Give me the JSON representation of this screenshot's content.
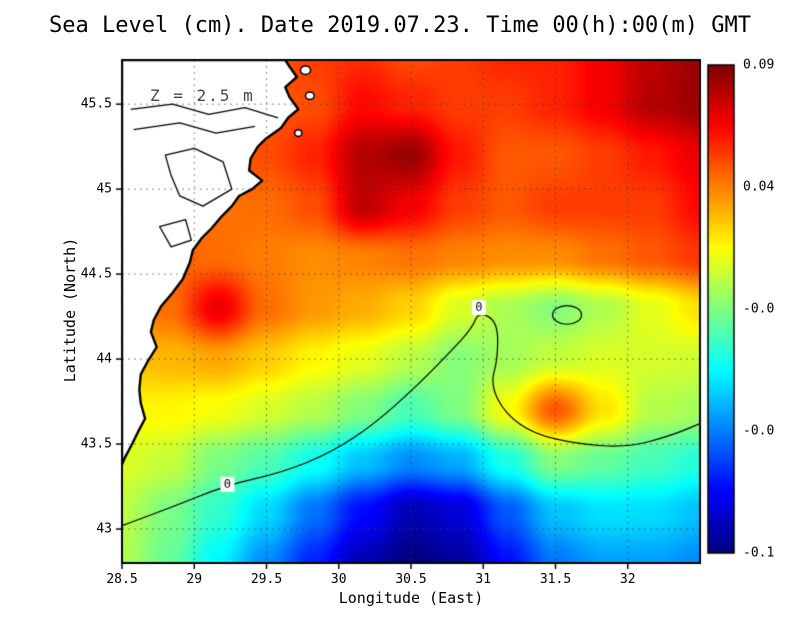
{
  "chart_data": {
    "type": "heatmap",
    "title": "Sea Level (cm). Date 2019.07.23. Time 00(h):00(m) GMT",
    "xlabel": "Longitude (East)",
    "ylabel": "Latitude (North)",
    "units": "cm",
    "annotations": [
      {
        "text": "Z = 2.5 m",
        "lon": 28.7,
        "lat": 45.55
      }
    ],
    "x_range": [
      28.5,
      32.5
    ],
    "y_range": [
      42.8,
      45.76
    ],
    "value_range": [
      -0.1,
      0.09
    ],
    "colormap": "jet",
    "grid": "dotted",
    "x_ticks": {
      "values": [
        28.5,
        29,
        29.5,
        30,
        30.5,
        31,
        31.5,
        32
      ],
      "labels": [
        "28.5",
        "29",
        "29.5",
        "30",
        "30.5",
        "31",
        "31.5",
        "32"
      ]
    },
    "y_ticks": {
      "values": [
        43,
        43.5,
        44,
        44.5,
        45,
        45.5
      ],
      "labels": [
        "43",
        "43.5",
        "44",
        "44.5",
        "45",
        "45.5"
      ]
    },
    "colorbar": {
      "vmin": -0.1,
      "vmax": 0.09,
      "labels": [
        "0.09",
        "0.04",
        "-0.0",
        "-0.0",
        "-0.1"
      ],
      "position": "right"
    },
    "grid_lon": [
      28.5,
      28.833,
      29.167,
      29.5,
      29.833,
      30.167,
      30.5,
      30.833,
      31.167,
      31.5,
      31.833,
      32.167,
      32.5
    ],
    "grid_lat": [
      45.8,
      45.5,
      45.2,
      44.9,
      44.6,
      44.3,
      44.0,
      43.7,
      43.4,
      43.1,
      42.8
    ],
    "values": [
      [
        0.05,
        0.05,
        0.05,
        0.05,
        0.055,
        0.058,
        0.052,
        0.055,
        0.06,
        0.06,
        0.068,
        0.078,
        0.085
      ],
      [
        0.05,
        0.05,
        0.05,
        0.05,
        0.052,
        0.065,
        0.06,
        0.055,
        0.055,
        0.06,
        0.068,
        0.08,
        0.085
      ],
      [
        0.048,
        0.048,
        0.048,
        0.052,
        0.06,
        0.08,
        0.085,
        0.062,
        0.05,
        0.05,
        0.055,
        0.062,
        0.07
      ],
      [
        0.045,
        0.045,
        0.045,
        0.046,
        0.052,
        0.078,
        0.068,
        0.055,
        0.05,
        0.055,
        0.055,
        0.055,
        0.065
      ],
      [
        0.05,
        0.048,
        0.046,
        0.043,
        0.04,
        0.042,
        0.045,
        0.042,
        0.04,
        0.04,
        0.045,
        0.05,
        0.056
      ],
      [
        0.04,
        0.046,
        0.07,
        0.046,
        0.038,
        0.034,
        0.027,
        0.012,
        0.003,
        -0.004,
        0.004,
        0.014,
        0.024
      ],
      [
        0.03,
        0.032,
        0.035,
        0.028,
        0.02,
        0.014,
        0.006,
        -0.004,
        0.002,
        0.008,
        0.012,
        0.011,
        0.01
      ],
      [
        0.02,
        0.02,
        0.017,
        0.011,
        0.005,
        -0.005,
        -0.015,
        -0.005,
        0.018,
        0.05,
        0.024,
        0.005,
        0.002
      ],
      [
        0.012,
        0.008,
        -0.006,
        -0.014,
        -0.026,
        -0.04,
        -0.05,
        -0.044,
        -0.024,
        -0.004,
        -0.01,
        -0.016,
        -0.022
      ],
      [
        0.006,
        -0.006,
        -0.02,
        -0.036,
        -0.055,
        -0.075,
        -0.09,
        -0.084,
        -0.06,
        -0.04,
        -0.034,
        -0.035,
        -0.04
      ],
      [
        0.004,
        -0.01,
        -0.03,
        -0.05,
        -0.07,
        -0.09,
        -0.1,
        -0.094,
        -0.074,
        -0.054,
        -0.046,
        -0.046,
        -0.05
      ]
    ],
    "contour_label": "0",
    "zero_contour": [
      [
        28.5,
        43.02
      ],
      [
        28.82,
        43.12
      ],
      [
        29.23,
        43.26
      ],
      [
        29.6,
        43.33
      ],
      [
        29.95,
        43.45
      ],
      [
        30.25,
        43.62
      ],
      [
        30.55,
        43.85
      ],
      [
        30.78,
        44.05
      ],
      [
        30.92,
        44.18
      ],
      [
        30.97,
        44.28
      ],
      [
        31.1,
        44.22
      ],
      [
        31.1,
        44.0
      ],
      [
        31.05,
        43.85
      ],
      [
        31.15,
        43.68
      ],
      [
        31.35,
        43.56
      ],
      [
        31.65,
        43.5
      ],
      [
        32.0,
        43.48
      ],
      [
        32.3,
        43.55
      ],
      [
        32.5,
        43.62
      ]
    ],
    "zero_contour_labels": [
      [
        30.97,
        44.3
      ],
      [
        29.23,
        43.26
      ]
    ],
    "closed_contour": {
      "center": [
        31.58,
        44.26
      ],
      "rx": 0.1,
      "ry": 0.055
    },
    "land_polygon": [
      [
        28.5,
        45.76
      ],
      [
        29.63,
        45.76
      ],
      [
        29.66,
        45.72
      ],
      [
        29.71,
        45.66
      ],
      [
        29.63,
        45.6
      ],
      [
        29.66,
        45.54
      ],
      [
        29.72,
        45.47
      ],
      [
        29.65,
        45.42
      ],
      [
        29.6,
        45.36
      ],
      [
        29.5,
        45.3
      ],
      [
        29.44,
        45.25
      ],
      [
        29.39,
        45.18
      ],
      [
        29.38,
        45.11
      ],
      [
        29.47,
        45.05
      ],
      [
        29.4,
        45.0
      ],
      [
        29.31,
        44.96
      ],
      [
        29.26,
        44.9
      ],
      [
        29.19,
        44.84
      ],
      [
        29.12,
        44.77
      ],
      [
        29.05,
        44.71
      ],
      [
        28.99,
        44.64
      ],
      [
        28.97,
        44.57
      ],
      [
        28.92,
        44.47
      ],
      [
        28.85,
        44.39
      ],
      [
        28.77,
        44.31
      ],
      [
        28.72,
        44.23
      ],
      [
        28.7,
        44.16
      ],
      [
        28.74,
        44.07
      ],
      [
        28.68,
        43.99
      ],
      [
        28.63,
        43.91
      ],
      [
        28.62,
        43.82
      ],
      [
        28.63,
        43.74
      ],
      [
        28.66,
        43.65
      ],
      [
        28.61,
        43.57
      ],
      [
        28.57,
        43.5
      ],
      [
        28.52,
        43.42
      ],
      [
        28.5,
        43.38
      ]
    ],
    "lakes": [
      [
        [
          28.8,
          45.2
        ],
        [
          29.0,
          45.24
        ],
        [
          29.2,
          45.16
        ],
        [
          29.26,
          45.0
        ],
        [
          29.06,
          44.9
        ],
        [
          28.9,
          44.96
        ],
        [
          28.84,
          45.08
        ]
      ],
      [
        [
          28.76,
          44.78
        ],
        [
          28.94,
          44.82
        ],
        [
          28.98,
          44.7
        ],
        [
          28.84,
          44.66
        ]
      ]
    ],
    "channels": [
      [
        [
          28.56,
          45.47
        ],
        [
          28.85,
          45.5
        ],
        [
          29.1,
          45.44
        ],
        [
          29.35,
          45.48
        ],
        [
          29.58,
          45.42
        ]
      ],
      [
        [
          28.58,
          45.35
        ],
        [
          28.9,
          45.39
        ],
        [
          29.15,
          45.33
        ],
        [
          29.42,
          45.37
        ]
      ]
    ],
    "islands": [
      {
        "center": [
          29.77,
          45.7
        ],
        "rx": 0.035,
        "ry": 0.025
      },
      {
        "center": [
          29.8,
          45.55
        ],
        "rx": 0.03,
        "ry": 0.022
      },
      {
        "center": [
          29.72,
          45.33
        ],
        "rx": 0.025,
        "ry": 0.02
      }
    ]
  }
}
